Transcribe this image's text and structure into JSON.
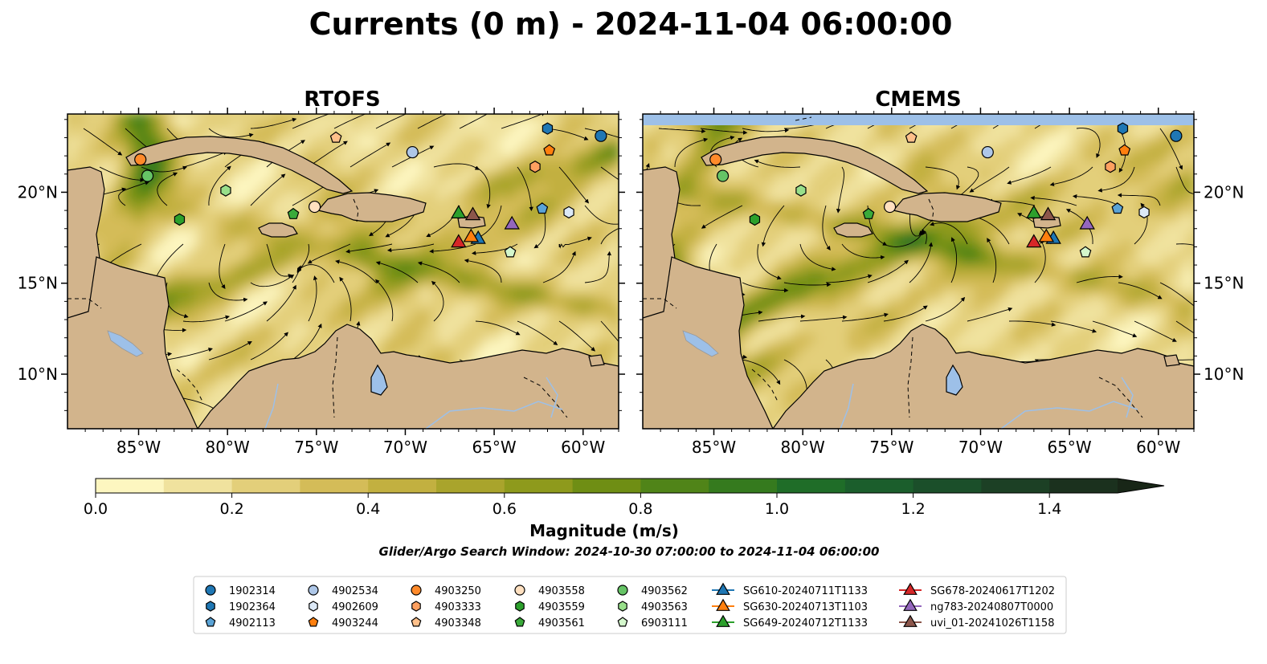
{
  "title": "Currents (0 m) - 2024-11-04 06:00:00",
  "chart_data": [
    {
      "type": "heatmap",
      "panel": "RTOFS",
      "title": "RTOFS",
      "variable": "surface current magnitude with streamlines",
      "lon_range": [
        -89,
        -58
      ],
      "lat_range": [
        7,
        24.3
      ],
      "x_ticks": [
        {
          "v": -85,
          "label": "85°W"
        },
        {
          "v": -80,
          "label": "80°W"
        },
        {
          "v": -75,
          "label": "75°W"
        },
        {
          "v": -70,
          "label": "70°W"
        },
        {
          "v": -65,
          "label": "65°W"
        },
        {
          "v": -60,
          "label": "60°W"
        }
      ],
      "y_ticks": [
        {
          "v": 20,
          "label": "20°N"
        },
        {
          "v": 15,
          "label": "15°N"
        },
        {
          "v": 10,
          "label": "10°N"
        }
      ],
      "ytick_side": "left"
    },
    {
      "type": "heatmap",
      "panel": "CMEMS",
      "title": "CMEMS",
      "variable": "surface current magnitude with streamlines",
      "lon_range": [
        -89,
        -58
      ],
      "lat_range": [
        7,
        24.3
      ],
      "x_ticks": [
        {
          "v": -85,
          "label": "85°W"
        },
        {
          "v": -80,
          "label": "80°W"
        },
        {
          "v": -75,
          "label": "75°W"
        },
        {
          "v": -70,
          "label": "70°W"
        },
        {
          "v": -65,
          "label": "65°W"
        },
        {
          "v": -60,
          "label": "60°W"
        }
      ],
      "y_ticks": [
        {
          "v": 20,
          "label": "20°N"
        },
        {
          "v": 15,
          "label": "15°N"
        },
        {
          "v": 10,
          "label": "10°N"
        }
      ],
      "ytick_side": "right"
    }
  ],
  "colorbar": {
    "label": "Magnitude (m/s)",
    "min": 0.0,
    "max": 1.6,
    "step": 0.1,
    "extend": "max",
    "tick_values": [
      0.0,
      0.2,
      0.4,
      0.6,
      0.8,
      1.0,
      1.2,
      1.4
    ],
    "tick_labels": [
      "0.0",
      "0.2",
      "0.4",
      "0.6",
      "0.8",
      "1.0",
      "1.2",
      "1.4"
    ],
    "colors": [
      "#fdf6c0",
      "#f0e29e",
      "#e3cf7a",
      "#d4bc58",
      "#c2b040",
      "#a9a42c",
      "#8e9a1c",
      "#6f8e14",
      "#508418",
      "#357a1e",
      "#1f6d28",
      "#1b5e2c",
      "#1b4f2a",
      "#1c4025",
      "#1b311e",
      "#182617"
    ]
  },
  "search_window": "Glider/Argo Search Window: 2024-10-30 07:00:00 to 2024-11-04 06:00:00",
  "land_color": "#d2b48c",
  "water_color": "#9dc0e8",
  "legend": {
    "columns": [
      [
        {
          "label": "1902314",
          "shape": "circle",
          "color": "#1f77b4"
        },
        {
          "label": "1902364",
          "shape": "hexagon",
          "color": "#1f77b4"
        },
        {
          "label": "4902113",
          "shape": "pentagon",
          "color": "#5aa3d6"
        }
      ],
      [
        {
          "label": "4902534",
          "shape": "circle",
          "color": "#aec7e8"
        },
        {
          "label": "4902609",
          "shape": "hexagon",
          "color": "#dce9f7"
        },
        {
          "label": "4903244",
          "shape": "pentagon",
          "color": "#ff7f0e"
        }
      ],
      [
        {
          "label": "4903250",
          "shape": "circle",
          "color": "#ff8a2a"
        },
        {
          "label": "4903333",
          "shape": "hexagon",
          "color": "#ffa060"
        },
        {
          "label": "4903348",
          "shape": "pentagon",
          "color": "#ffc08a"
        }
      ],
      [
        {
          "label": "4903558",
          "shape": "circle",
          "color": "#ffe0c0"
        },
        {
          "label": "4903559",
          "shape": "hexagon",
          "color": "#2ca02c"
        },
        {
          "label": "4903561",
          "shape": "pentagon",
          "color": "#3aaa3a"
        }
      ],
      [
        {
          "label": "4903562",
          "shape": "circle",
          "color": "#66c466"
        },
        {
          "label": "4903563",
          "shape": "hexagon",
          "color": "#98df8a"
        },
        {
          "label": "6903111",
          "shape": "pentagon",
          "color": "#d4f7cc"
        }
      ],
      [
        {
          "label": "SG610-20240711T1133",
          "shape": "triangle",
          "color": "#1f77b4"
        },
        {
          "label": "SG630-20240713T1103",
          "shape": "triangle",
          "color": "#ff7f0e"
        },
        {
          "label": "SG649-20240712T1133",
          "shape": "triangle",
          "color": "#2ca02c"
        }
      ],
      [
        {
          "label": "SG678-20240617T1202",
          "shape": "triangle",
          "color": "#d62728"
        },
        {
          "label": "ng783-20240807T0000",
          "shape": "triangle",
          "color": "#9467bd"
        },
        {
          "label": "uvi_01-20241026T1158",
          "shape": "triangle",
          "color": "#8c564b"
        }
      ]
    ]
  },
  "markers": [
    {
      "id": "1902314",
      "lon": -59,
      "lat": 23.1,
      "shape": "circle",
      "color": "#1f77b4"
    },
    {
      "id": "1902364",
      "lon": -62,
      "lat": 23.5,
      "shape": "hexagon",
      "color": "#1f77b4"
    },
    {
      "id": "4902113",
      "lon": -62.3,
      "lat": 19.1,
      "shape": "pentagon",
      "color": "#5aa3d6"
    },
    {
      "id": "4902534",
      "lon": -69.6,
      "lat": 22.2,
      "shape": "circle",
      "color": "#aec7e8"
    },
    {
      "id": "4902609",
      "lon": -60.8,
      "lat": 18.9,
      "shape": "hexagon",
      "color": "#dce9f7"
    },
    {
      "id": "4903244",
      "lon": -61.9,
      "lat": 22.3,
      "shape": "pentagon",
      "color": "#ff7f0e"
    },
    {
      "id": "4903250",
      "lon": -84.9,
      "lat": 21.8,
      "shape": "circle",
      "color": "#ff8a2a"
    },
    {
      "id": "4903333",
      "lon": -62.7,
      "lat": 21.4,
      "shape": "hexagon",
      "color": "#ffa060"
    },
    {
      "id": "4903348",
      "lon": -73.9,
      "lat": 23.0,
      "shape": "pentagon",
      "color": "#ffc08a"
    },
    {
      "id": "4903558",
      "lon": -75.1,
      "lat": 19.2,
      "shape": "circle",
      "color": "#ffe0c0"
    },
    {
      "id": "4903559",
      "lon": -82.7,
      "lat": 18.5,
      "shape": "hexagon",
      "color": "#2ca02c"
    },
    {
      "id": "4903561",
      "lon": -76.3,
      "lat": 18.8,
      "shape": "pentagon",
      "color": "#3aaa3a"
    },
    {
      "id": "4903562",
      "lon": -84.5,
      "lat": 20.9,
      "shape": "circle",
      "color": "#66c466"
    },
    {
      "id": "4903563",
      "lon": -80.1,
      "lat": 20.1,
      "shape": "hexagon",
      "color": "#98df8a"
    },
    {
      "id": "6903111",
      "lon": -64.1,
      "lat": 16.7,
      "shape": "pentagon",
      "color": "#d4f7cc"
    },
    {
      "id": "SG610-20240711T1133",
      "lon": -65.9,
      "lat": 17.5,
      "shape": "triangle",
      "color": "#1f77b4"
    },
    {
      "id": "SG630-20240713T1103",
      "lon": -66.3,
      "lat": 17.6,
      "shape": "triangle",
      "color": "#ff7f0e"
    },
    {
      "id": "SG649-20240712T1133",
      "lon": -67.0,
      "lat": 18.9,
      "shape": "triangle",
      "color": "#2ca02c"
    },
    {
      "id": "SG678-20240617T1202",
      "lon": -67.0,
      "lat": 17.3,
      "shape": "triangle",
      "color": "#d62728"
    },
    {
      "id": "ng783-20240807T0000",
      "lon": -64.0,
      "lat": 18.3,
      "shape": "triangle",
      "color": "#9467bd"
    },
    {
      "id": "uvi_01-20241026T1158",
      "lon": -66.2,
      "lat": 18.8,
      "shape": "triangle",
      "color": "#8c564b"
    }
  ]
}
